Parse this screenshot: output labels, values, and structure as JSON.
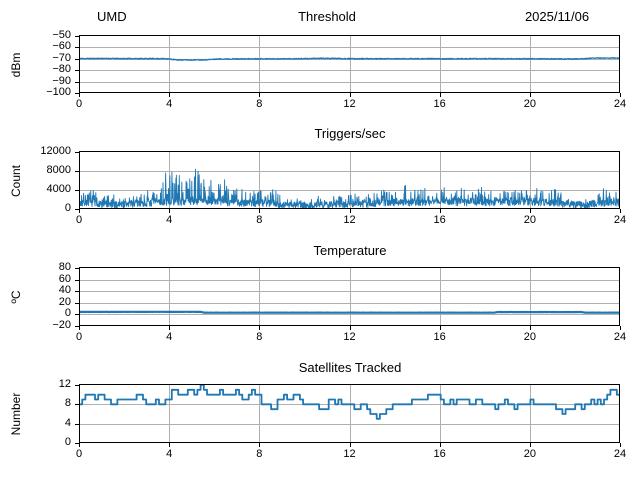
{
  "figure": {
    "background": "#ffffff",
    "text_color": "#000000",
    "line_color": "#1f77b4",
    "grid_color": "#b0b0b0",
    "spine_color": "#000000"
  },
  "chart_data": [
    {
      "type": "line",
      "title": "Threshold",
      "title_left": "UMD",
      "title_right": "2025/11/06",
      "ylabel": "dBm",
      "xlim": [
        0,
        24
      ],
      "ylim": [
        -100,
        -50
      ],
      "xticks": [
        0,
        4,
        8,
        12,
        16,
        20,
        24
      ],
      "yticks": [
        -50,
        -60,
        -70,
        -80,
        -90,
        -100
      ],
      "line_width": 1.2,
      "series_spec": {
        "seed": 11,
        "samples": 1600,
        "noise": 0.8,
        "base": [
          [
            0,
            -69.8
          ],
          [
            1,
            -69.7
          ],
          [
            2,
            -69.8
          ],
          [
            3.9,
            -69.9
          ],
          [
            4.3,
            -70.9
          ],
          [
            5,
            -71.0
          ],
          [
            5.6,
            -70.8
          ],
          [
            6.2,
            -70.2
          ],
          [
            7,
            -70.1
          ],
          [
            8,
            -70.0
          ],
          [
            9,
            -70.0
          ],
          [
            10,
            -69.9
          ],
          [
            10.8,
            -69.6
          ],
          [
            11.5,
            -69.7
          ],
          [
            12,
            -69.9
          ],
          [
            13,
            -70.0
          ],
          [
            14,
            -70.0
          ],
          [
            15,
            -69.9
          ],
          [
            16,
            -70.0
          ],
          [
            17,
            -70.0
          ],
          [
            18,
            -69.9
          ],
          [
            19,
            -70.0
          ],
          [
            20,
            -70.0
          ],
          [
            21,
            -70.1
          ],
          [
            22,
            -70.2
          ],
          [
            22.4,
            -69.9
          ],
          [
            22.8,
            -69.4
          ],
          [
            23.5,
            -69.3
          ],
          [
            24,
            -69.3
          ]
        ],
        "clamp": [
          -100,
          -50
        ]
      }
    },
    {
      "type": "line",
      "title": "Triggers/sec",
      "ylabel": "Count",
      "xlim": [
        0,
        24
      ],
      "ylim": [
        0,
        12000
      ],
      "xticks": [
        0,
        4,
        8,
        12,
        16,
        20,
        24
      ],
      "yticks": [
        0,
        4000,
        8000,
        12000
      ],
      "line_width": 0.9,
      "series_spec": {
        "seed": 7,
        "samples": 1900,
        "noise": 1500,
        "base": [
          [
            0,
            1100
          ],
          [
            0.5,
            1300
          ],
          [
            1,
            900
          ],
          [
            1.5,
            800
          ],
          [
            2,
            900
          ],
          [
            2.5,
            1100
          ],
          [
            3,
            1200
          ],
          [
            3.5,
            1300
          ],
          [
            4,
            1500
          ],
          [
            5,
            1500
          ],
          [
            6,
            1500
          ],
          [
            7,
            1300
          ],
          [
            8,
            1200
          ],
          [
            8.6,
            1300
          ],
          [
            8.9,
            800
          ],
          [
            10,
            750
          ],
          [
            11,
            800
          ],
          [
            11.5,
            1000
          ],
          [
            12,
            1000
          ],
          [
            13,
            1100
          ],
          [
            14,
            1400
          ],
          [
            15,
            1400
          ],
          [
            16,
            1500
          ],
          [
            17,
            1400
          ],
          [
            18,
            1400
          ],
          [
            19,
            1400
          ],
          [
            20,
            1500
          ],
          [
            21,
            1300
          ],
          [
            21.6,
            900
          ],
          [
            22.5,
            800
          ],
          [
            23.2,
            1200
          ],
          [
            23.6,
            1500
          ],
          [
            24,
            1300
          ]
        ],
        "spike": [
          [
            0,
            2200
          ],
          [
            0.6,
            2500
          ],
          [
            1,
            1800
          ],
          [
            2,
            2000
          ],
          [
            3,
            2400
          ],
          [
            3.6,
            2800
          ],
          [
            3.85,
            7800
          ],
          [
            4.1,
            5500
          ],
          [
            4.4,
            7200
          ],
          [
            4.7,
            8600
          ],
          [
            5,
            6000
          ],
          [
            5.2,
            7600
          ],
          [
            5.5,
            5200
          ],
          [
            5.9,
            6600
          ],
          [
            6.3,
            5000
          ],
          [
            6.6,
            5800
          ],
          [
            7,
            3800
          ],
          [
            7.5,
            3200
          ],
          [
            8,
            2600
          ],
          [
            8.6,
            3600
          ],
          [
            9,
            1400
          ],
          [
            10,
            1100
          ],
          [
            11,
            1600
          ],
          [
            11.5,
            2400
          ],
          [
            12,
            2000
          ],
          [
            13,
            2200
          ],
          [
            14,
            2800
          ],
          [
            14.5,
            4000
          ],
          [
            15,
            3000
          ],
          [
            16,
            3400
          ],
          [
            17,
            3000
          ],
          [
            18,
            3200
          ],
          [
            19,
            3000
          ],
          [
            20,
            2900
          ],
          [
            20.5,
            3600
          ],
          [
            21,
            3200
          ],
          [
            21.5,
            2200
          ],
          [
            22,
            1600
          ],
          [
            22.5,
            1300
          ],
          [
            23,
            1800
          ],
          [
            23.5,
            4300
          ],
          [
            24,
            2600
          ]
        ],
        "spike_pow": 6,
        "clamp": [
          60,
          11800
        ]
      }
    },
    {
      "type": "line",
      "title": "Temperature",
      "ylabel": "ºC",
      "xlim": [
        0,
        24
      ],
      "ylim": [
        -20,
        80
      ],
      "xticks": [
        0,
        4,
        8,
        12,
        16,
        20,
        24
      ],
      "yticks": [
        -20,
        0,
        20,
        40,
        60,
        80
      ],
      "line_width": 2.2,
      "series_spec": {
        "seed": 3,
        "samples": 600,
        "noise": 0.25,
        "base": [
          [
            0,
            4.3
          ],
          [
            5.4,
            4.4
          ],
          [
            5.55,
            3.0
          ],
          [
            12,
            3.0
          ],
          [
            18.4,
            3.0
          ],
          [
            18.55,
            4.0
          ],
          [
            22.3,
            4.0
          ],
          [
            22.45,
            3.0
          ],
          [
            24,
            3.0
          ]
        ],
        "clamp": [
          -20,
          80
        ]
      }
    },
    {
      "type": "step",
      "title": "Satellites Tracked",
      "ylabel": "Number",
      "xlim": [
        0,
        24
      ],
      "ylim": [
        0,
        12
      ],
      "xticks": [
        0,
        4,
        8,
        12,
        16,
        20,
        24
      ],
      "yticks": [
        0,
        4,
        8,
        12
      ],
      "line_width": 1.8,
      "series_spec": {
        "seed": 19,
        "samples": 170,
        "noise": 1.4,
        "round": true,
        "base": [
          [
            0,
            8.5
          ],
          [
            0.3,
            10
          ],
          [
            1,
            9.5
          ],
          [
            1.5,
            8
          ],
          [
            2,
            9
          ],
          [
            2.5,
            9.5
          ],
          [
            3,
            8.5
          ],
          [
            3.5,
            8.7
          ],
          [
            4,
            9
          ],
          [
            4.2,
            11
          ],
          [
            4.6,
            10
          ],
          [
            5,
            10.5
          ],
          [
            5.3,
            11.5
          ],
          [
            5.7,
            10
          ],
          [
            6,
            10.5
          ],
          [
            6.5,
            10
          ],
          [
            7,
            10.5
          ],
          [
            7.3,
            9.2
          ],
          [
            7.7,
            10.5
          ],
          [
            8,
            9
          ],
          [
            8.3,
            8
          ],
          [
            8.7,
            7.5
          ],
          [
            9,
            10
          ],
          [
            9.5,
            10
          ],
          [
            10,
            8
          ],
          [
            10.5,
            7.5
          ],
          [
            11,
            8
          ],
          [
            11.3,
            8.5
          ],
          [
            11.7,
            8
          ],
          [
            12,
            8.5
          ],
          [
            12.3,
            7.2
          ],
          [
            12.7,
            7
          ],
          [
            13,
            5.8
          ],
          [
            13.3,
            5.2
          ],
          [
            13.6,
            7
          ],
          [
            14,
            8
          ],
          [
            14.3,
            7.5
          ],
          [
            14.7,
            8.5
          ],
          [
            15,
            8.2
          ],
          [
            15.3,
            9.5
          ],
          [
            15.7,
            10
          ],
          [
            16,
            9.5
          ],
          [
            16.3,
            8
          ],
          [
            16.7,
            8.5
          ],
          [
            17,
            9.5
          ],
          [
            17.3,
            8
          ],
          [
            17.7,
            8.5
          ],
          [
            18,
            8
          ],
          [
            18.5,
            7.8
          ],
          [
            19,
            8.5
          ],
          [
            19.3,
            8
          ],
          [
            19.7,
            8.5
          ],
          [
            20,
            8
          ],
          [
            20.5,
            8
          ],
          [
            21,
            7.5
          ],
          [
            21.3,
            6.5
          ],
          [
            21.7,
            7.5
          ],
          [
            22,
            8
          ],
          [
            22.3,
            7.5
          ],
          [
            22.7,
            8
          ],
          [
            23,
            8.5
          ],
          [
            23.3,
            9
          ],
          [
            23.6,
            10.8
          ],
          [
            23.8,
            9.5
          ],
          [
            24,
            9.5
          ]
        ],
        "clamp": [
          5,
          12
        ]
      }
    }
  ]
}
